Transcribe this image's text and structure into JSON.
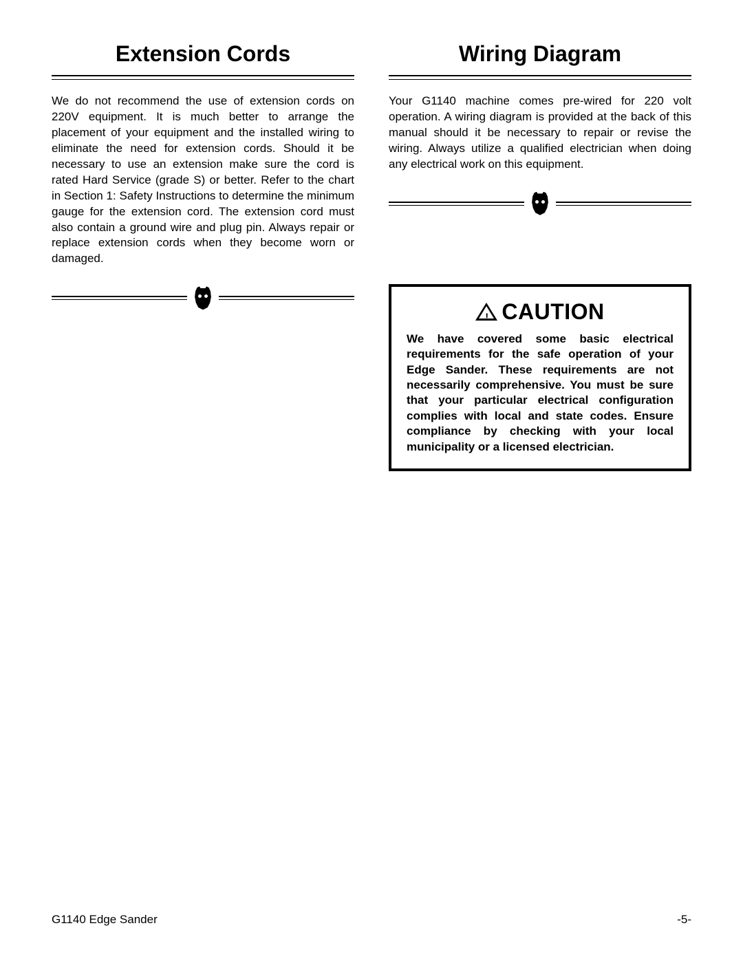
{
  "left": {
    "title": "Extension Cords",
    "body": "We do not recommend the use of extension cords on 220V equipment. It is much better to arrange the placement of your equipment and the installed wiring to eliminate the need for extension cords. Should it be necessary to use an extension make sure the cord is rated Hard Service (grade S) or better. Refer to the chart in Section 1: Safety Instructions to determine the minimum gauge for the extension cord. The extension cord must also contain a ground wire and plug pin. Always repair or replace extension cords when they become worn or damaged."
  },
  "right": {
    "title": "Wiring Diagram",
    "body": "Your G1140 machine comes pre-wired for 220 volt operation. A wiring diagram is provided at the back of this manual should it be necessary to repair or revise the wiring. Always utilize a qualified electrician when doing any electrical work on this equipment."
  },
  "caution": {
    "label": "CAUTION",
    "body": "We have covered some basic electrical requirements for the safe operation of your Edge Sander. These requirements are not necessarily comprehensive. You must be sure that your particular electrical configuration complies with local and state codes. Ensure compliance by checking with your local municipality or a licensed electrician."
  },
  "footer": {
    "product": "G1140 Edge Sander",
    "page": "-5-"
  },
  "colors": {
    "text": "#000000",
    "background": "#ffffff",
    "border": "#000000"
  },
  "typography": {
    "title_fontsize": 32,
    "body_fontsize": 17,
    "caution_label_fontsize": 32,
    "footer_fontsize": 17
  }
}
